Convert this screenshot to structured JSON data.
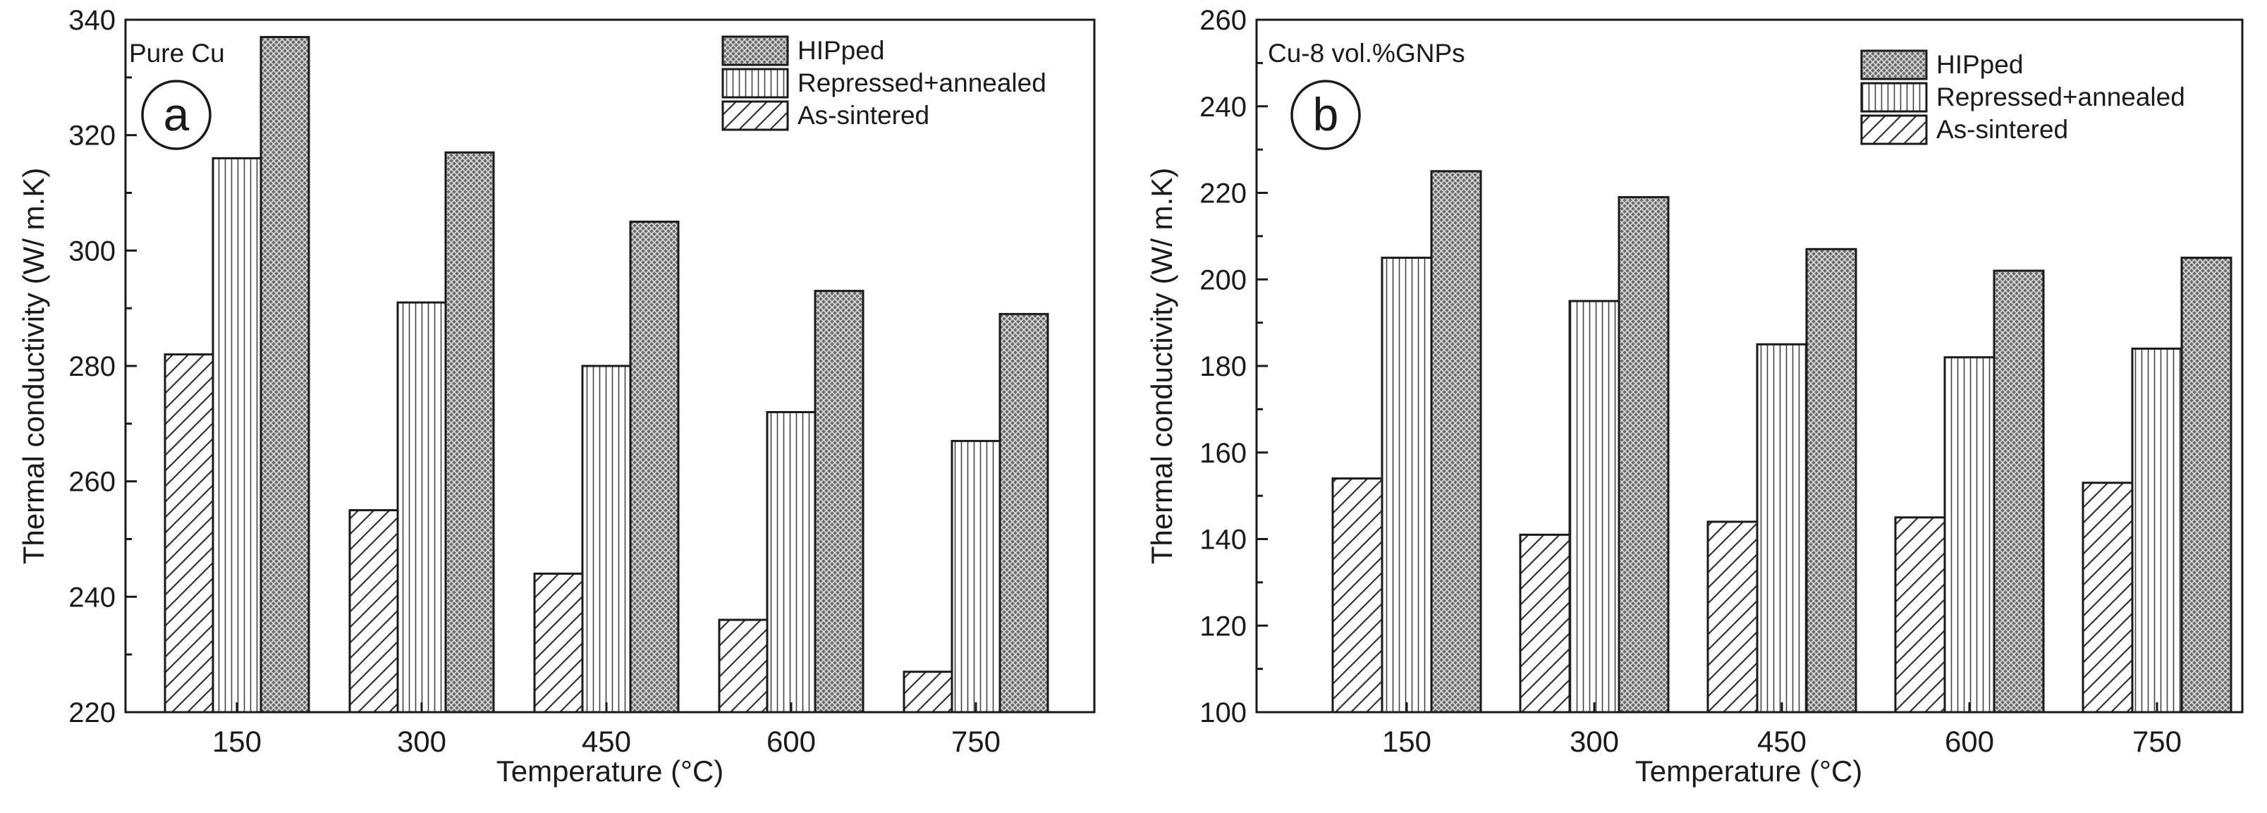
{
  "chart_data": [
    {
      "type": "bar",
      "panel_letter": "a",
      "title": "Pure Cu",
      "xlabel": "Temperature (°C)",
      "ylabel": "Thermal conductivity (W/ m.K)",
      "categories": [
        "150",
        "300",
        "450",
        "600",
        "750"
      ],
      "ylim": [
        220,
        340
      ],
      "yticks": [
        220,
        240,
        260,
        280,
        300,
        320,
        340
      ],
      "legend_position": "top-right",
      "series": [
        {
          "name": "As-sintered",
          "pattern": "diagonal",
          "values": [
            282,
            255,
            244,
            236,
            227
          ]
        },
        {
          "name": "Repressed+annealed",
          "pattern": "vertical",
          "values": [
            316,
            291,
            280,
            272,
            267
          ]
        },
        {
          "name": "HIPped",
          "pattern": "crosshatch",
          "values": [
            337,
            317,
            305,
            293,
            289
          ]
        }
      ]
    },
    {
      "type": "bar",
      "panel_letter": "b",
      "title": "Cu-8 vol.%GNPs",
      "xlabel": "Temperature (°C)",
      "ylabel": "Thermal conductivity (W/ m.K)",
      "categories": [
        "150",
        "300",
        "450",
        "600",
        "750"
      ],
      "ylim": [
        100,
        260
      ],
      "yticks": [
        100,
        120,
        140,
        160,
        180,
        200,
        220,
        240,
        260
      ],
      "legend_position": "top-right",
      "series": [
        {
          "name": "As-sintered",
          "pattern": "diagonal",
          "values": [
            154,
            141,
            144,
            145,
            153
          ]
        },
        {
          "name": "Repressed+annealed",
          "pattern": "vertical",
          "values": [
            205,
            195,
            185,
            182,
            184
          ]
        },
        {
          "name": "HIPped",
          "pattern": "crosshatch",
          "values": [
            225,
            219,
            207,
            202,
            205
          ]
        }
      ]
    }
  ]
}
